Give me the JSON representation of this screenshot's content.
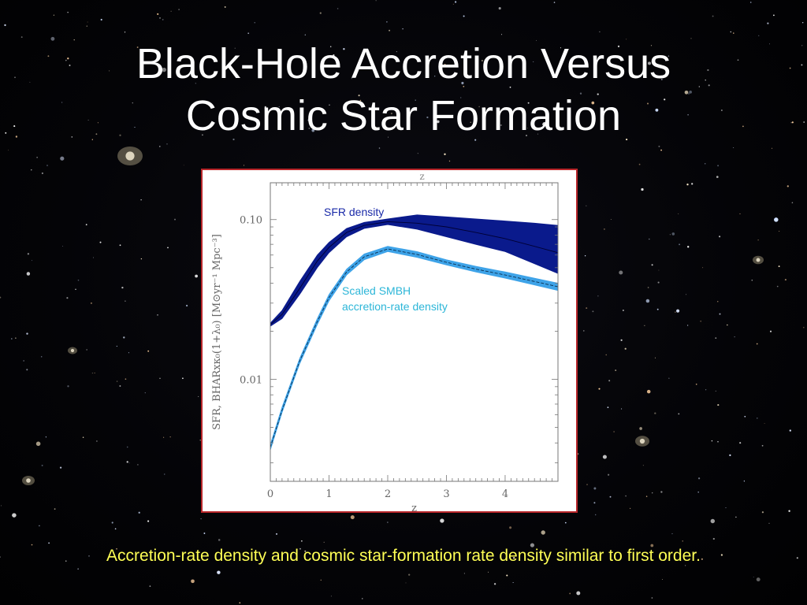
{
  "slide": {
    "title_line1": "Black-Hole Accretion Versus",
    "title_line2": "Cosmic Star Formation",
    "caption": "Accretion-rate density and cosmic star-formation rate density similar to first order."
  },
  "colors": {
    "sfr_band": "#0a1a8c",
    "smbh_band": "#3ea3e8",
    "sfr_label": "#1a2aa8",
    "smbh_label": "#2cb6d8",
    "caption": "#ffff55",
    "figure_border": "#b8262a"
  },
  "chart_data": {
    "type": "area",
    "title": "",
    "xlabel": "z",
    "top_xlabel": "z",
    "ylabel": "SFR, BHARxκ₀(1+λ₀) [M⊙yr⁻¹ Mpc⁻³]",
    "xlim": [
      0,
      4.9
    ],
    "ylim": [
      0.0023,
      0.17
    ],
    "yscale": "log",
    "xticks": [
      0,
      1,
      2,
      3,
      4
    ],
    "xtick_labels": [
      "0",
      "1",
      "2",
      "3",
      "4"
    ],
    "yticks": [
      0.01,
      0.1
    ],
    "ytick_labels": [
      "0.01",
      "0.10"
    ],
    "series": [
      {
        "name": "SFR density",
        "x": [
          0,
          0.2,
          0.5,
          0.8,
          1.0,
          1.3,
          1.6,
          2.0,
          2.5,
          3.0,
          3.5,
          4.0,
          4.5,
          4.9
        ],
        "lower": [
          0.0215,
          0.024,
          0.034,
          0.05,
          0.062,
          0.078,
          0.088,
          0.093,
          0.087,
          0.078,
          0.07,
          0.063,
          0.053,
          0.046
        ],
        "upper": [
          0.0225,
          0.027,
          0.041,
          0.06,
          0.072,
          0.088,
          0.096,
          0.101,
          0.107,
          0.104,
          0.101,
          0.098,
          0.095,
          0.092
        ],
        "center": [
          0.022,
          0.0255,
          0.037,
          0.055,
          0.067,
          0.083,
          0.092,
          0.097,
          0.095,
          0.09,
          0.083,
          0.076,
          0.068,
          0.062
        ]
      },
      {
        "name": "Scaled SMBH accretion-rate density",
        "x": [
          0,
          0.2,
          0.5,
          0.8,
          1.0,
          1.3,
          1.6,
          2.0,
          2.5,
          3.0,
          3.5,
          4.0,
          4.5,
          4.9
        ],
        "lower": [
          0.0036,
          0.0062,
          0.0125,
          0.022,
          0.031,
          0.045,
          0.056,
          0.063,
          0.058,
          0.052,
          0.047,
          0.043,
          0.039,
          0.036
        ],
        "upper": [
          0.0039,
          0.0067,
          0.0135,
          0.024,
          0.034,
          0.049,
          0.061,
          0.068,
          0.063,
          0.056,
          0.051,
          0.047,
          0.043,
          0.04
        ],
        "center": [
          0.00375,
          0.0064,
          0.013,
          0.023,
          0.0325,
          0.047,
          0.0585,
          0.0655,
          0.0605,
          0.054,
          0.049,
          0.045,
          0.041,
          0.038
        ]
      }
    ],
    "annotations": [
      {
        "text": "SFR density",
        "series": "SFR density"
      },
      {
        "text_line1": "Scaled SMBH",
        "text_line2": "accretion-rate density",
        "series": "Scaled SMBH accretion-rate density"
      }
    ]
  }
}
